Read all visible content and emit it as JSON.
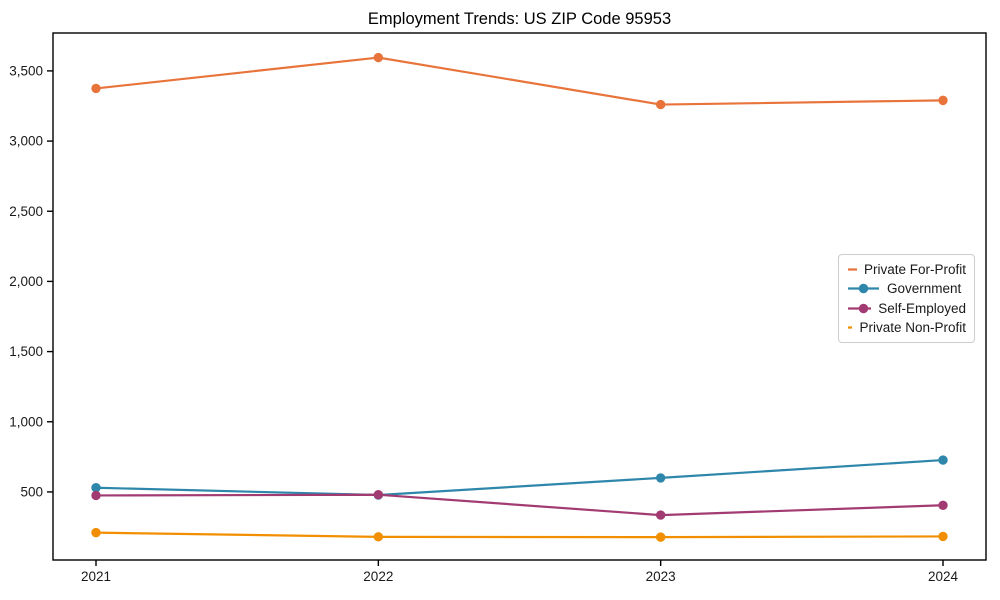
{
  "chart_data": {
    "type": "line",
    "title": "Employment Trends: US ZIP Code 95953",
    "x": [
      "2021",
      "2022",
      "2023",
      "2024"
    ],
    "series": [
      {
        "name": "Private For-Profit",
        "color": "#E8743B",
        "values": [
          3375,
          3595,
          3260,
          3290
        ]
      },
      {
        "name": "Government",
        "color": "#2E86AB",
        "values": [
          530,
          478,
          600,
          727
        ]
      },
      {
        "name": "Self-Employed",
        "color": "#A23B72",
        "values": [
          475,
          480,
          335,
          405
        ]
      },
      {
        "name": "Private Non-Profit",
        "color": "#F18F01",
        "values": [
          210,
          180,
          178,
          183
        ]
      }
    ],
    "xlabel": "",
    "ylabel": "",
    "ylim": [
      15,
      3770
    ],
    "yticks": [
      500,
      1000,
      1500,
      2000,
      2500,
      3000,
      3500
    ],
    "ytick_labels": [
      "500",
      "1,000",
      "1,500",
      "2,000",
      "2,500",
      "3,000",
      "3,500"
    ],
    "legend_position": "center right",
    "grid": false,
    "marker": "circle",
    "background_color": "#ffffff",
    "axis_color": "#000000",
    "tick_label_color": "#1a1a1a"
  }
}
